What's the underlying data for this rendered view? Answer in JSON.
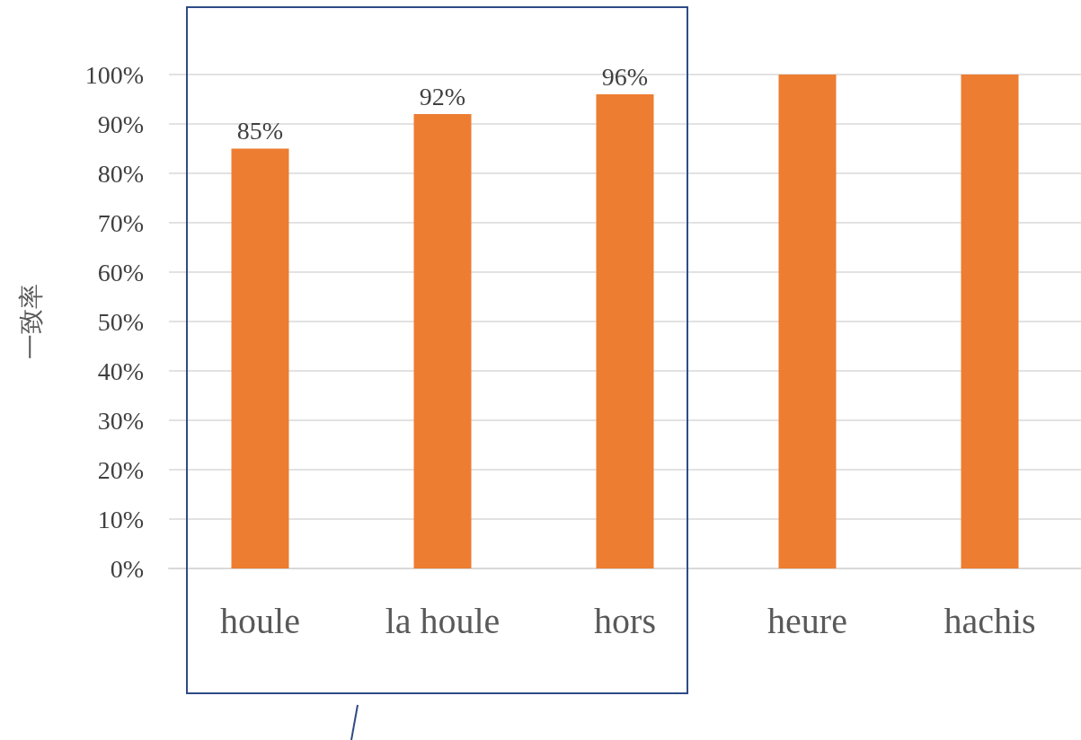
{
  "chart_data": {
    "type": "bar",
    "ylabel": "一致率",
    "categories": [
      "houle",
      "la houle",
      "hors",
      "heure",
      "hachis"
    ],
    "values": [
      85,
      92,
      96,
      100,
      100
    ],
    "value_labels": [
      "85%",
      "92%",
      "96%",
      null,
      null
    ],
    "color": "#ed7d31",
    "ylim": [
      0,
      100
    ],
    "yticks": [
      {
        "value": 0,
        "label": "0%"
      },
      {
        "value": 10,
        "label": "10%"
      },
      {
        "value": 20,
        "label": "20%"
      },
      {
        "value": 30,
        "label": "30%"
      },
      {
        "value": 40,
        "label": "40%"
      },
      {
        "value": 50,
        "label": "50%"
      },
      {
        "value": 60,
        "label": "60%"
      },
      {
        "value": 70,
        "label": "70%"
      },
      {
        "value": 80,
        "label": "80%"
      },
      {
        "value": 90,
        "label": "90%"
      },
      {
        "value": 100,
        "label": "100%"
      }
    ],
    "grid": "y"
  }
}
